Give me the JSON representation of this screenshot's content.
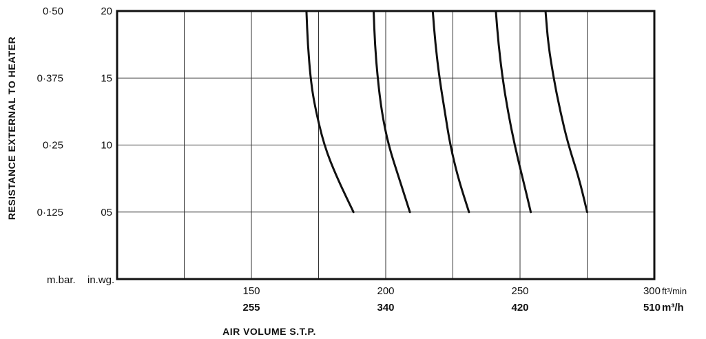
{
  "chart_data": {
    "type": "line",
    "xlabel": "AIR VOLUME S.T.P.",
    "ylabel": "RESISTANCE EXTERNAL TO HEATER",
    "xlim": [
      100,
      300
    ],
    "ylim": [
      0,
      2.0
    ],
    "x_ticks": [
      {
        "value": 150,
        "label": "150",
        "label2": "255"
      },
      {
        "value": 200,
        "label": "200",
        "label2": "340"
      },
      {
        "value": 250,
        "label": "250",
        "label2": "420"
      },
      {
        "value": 300,
        "label": "300",
        "label2": "510"
      }
    ],
    "x_unit": "ft³/min",
    "x_unit2": "m³/h",
    "y_ticks": [
      {
        "value": 0.5,
        "label": "05",
        "label_mbar": "0·125"
      },
      {
        "value": 1.0,
        "label": "10",
        "label_mbar": "0·25"
      },
      {
        "value": 1.5,
        "label": "15",
        "label_mbar": "0·375"
      },
      {
        "value": 2.0,
        "label": "20",
        "label_mbar": "0·50"
      }
    ],
    "y_unit_left": "m.bar.",
    "y_unit_right": "in.wg.",
    "grid": true,
    "series": [
      {
        "points": [
          [
            188,
            0.5
          ],
          [
            182,
            0.75
          ],
          [
            177,
            1.0
          ],
          [
            173.5,
            1.3
          ],
          [
            172,
            1.5
          ],
          [
            171,
            1.75
          ],
          [
            170.5,
            2.0
          ]
        ]
      },
      {
        "points": [
          [
            209,
            0.5
          ],
          [
            205,
            0.75
          ],
          [
            201,
            1.0
          ],
          [
            198.5,
            1.25
          ],
          [
            197,
            1.5
          ],
          [
            196,
            1.75
          ],
          [
            195.5,
            2.0
          ]
        ]
      },
      {
        "points": [
          [
            231,
            0.5
          ],
          [
            227,
            0.75
          ],
          [
            224,
            1.0
          ],
          [
            222,
            1.25
          ],
          [
            220,
            1.5
          ],
          [
            218.5,
            1.75
          ],
          [
            217.5,
            2.0
          ]
        ]
      },
      {
        "points": [
          [
            254,
            0.5
          ],
          [
            251,
            0.75
          ],
          [
            248,
            1.0
          ],
          [
            245.5,
            1.25
          ],
          [
            243.5,
            1.5
          ],
          [
            242,
            1.75
          ],
          [
            241,
            2.0
          ]
        ]
      },
      {
        "points": [
          [
            275,
            0.5
          ],
          [
            272,
            0.75
          ],
          [
            268,
            1.0
          ],
          [
            265,
            1.25
          ],
          [
            262.5,
            1.5
          ],
          [
            260.5,
            1.75
          ],
          [
            259.5,
            2.0
          ]
        ]
      }
    ]
  }
}
